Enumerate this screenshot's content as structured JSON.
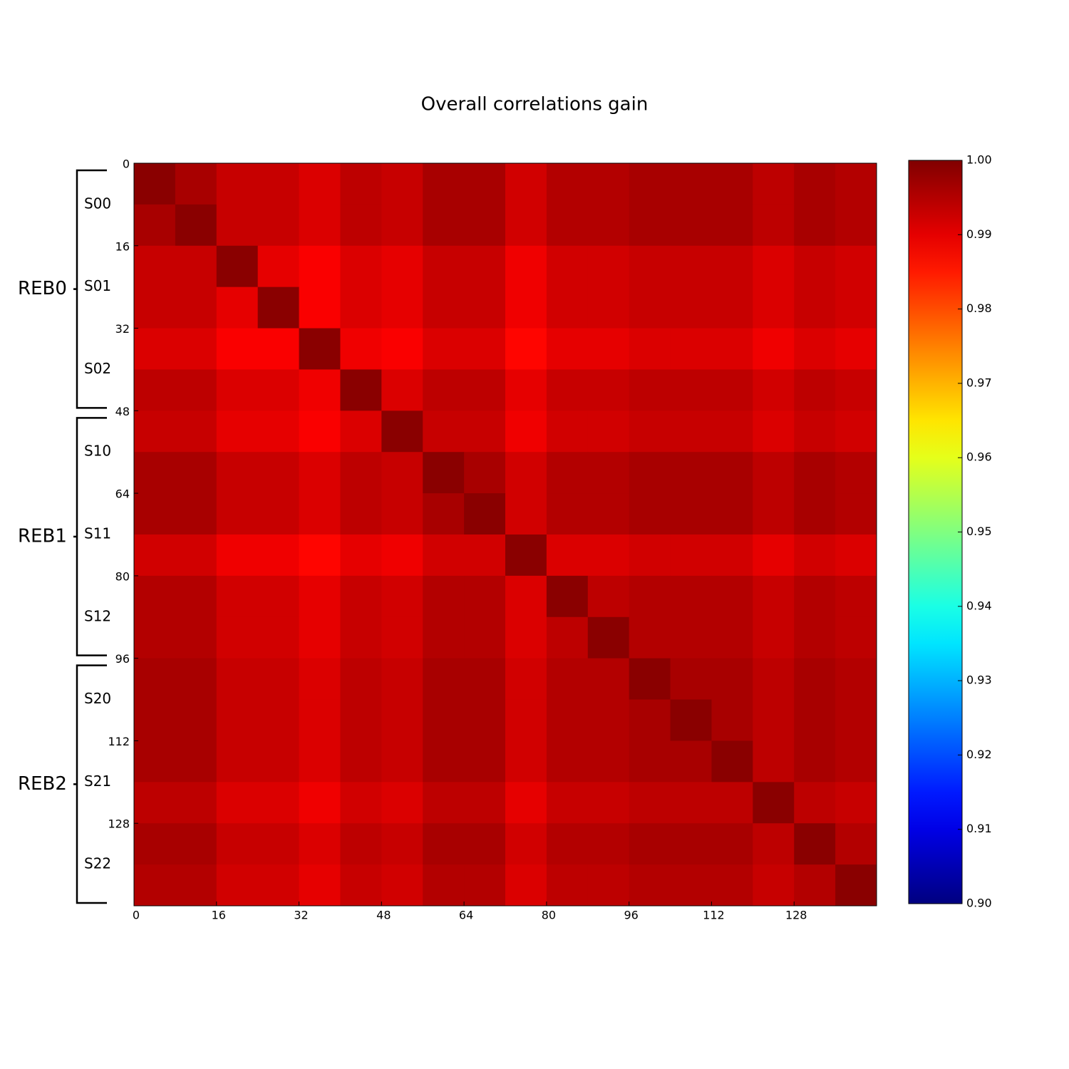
{
  "chart_data": {
    "type": "heatmap",
    "title": "Overall correlations gain",
    "colormap": "jet",
    "xlim": [
      0,
      144
    ],
    "ylim": [
      144,
      0
    ],
    "xticks": [
      0,
      16,
      32,
      48,
      64,
      80,
      96,
      112,
      128
    ],
    "yticks": [
      0,
      16,
      32,
      48,
      64,
      80,
      96,
      112,
      128
    ],
    "clim": [
      0.9,
      1.0
    ],
    "cticks": [
      {
        "value": 0.9,
        "label": "0.90"
      },
      {
        "value": 0.91,
        "label": "0.91"
      },
      {
        "value": 0.92,
        "label": "0.92"
      },
      {
        "value": 0.93,
        "label": "0.93"
      },
      {
        "value": 0.94,
        "label": "0.94"
      },
      {
        "value": 0.95,
        "label": "0.95"
      },
      {
        "value": 0.96,
        "label": "0.96"
      },
      {
        "value": 0.97,
        "label": "0.97"
      },
      {
        "value": 0.98,
        "label": "0.98"
      },
      {
        "value": 0.99,
        "label": "0.99"
      },
      {
        "value": 1.0,
        "label": "1.00"
      }
    ],
    "groups": [
      {
        "label": "REB0",
        "subgroups": [
          "S00",
          "S01",
          "S02"
        ]
      },
      {
        "label": "REB1",
        "subgroups": [
          "S10",
          "S11",
          "S12"
        ]
      },
      {
        "label": "REB2",
        "subgroups": [
          "S20",
          "S21",
          "S22"
        ]
      }
    ],
    "values": [
      [
        0.999,
        0.996,
        0.993,
        0.993,
        0.991,
        0.994,
        0.993,
        0.996,
        0.996,
        0.992,
        0.995,
        0.995,
        0.996,
        0.996,
        0.996,
        0.994,
        0.996,
        0.995
      ],
      [
        0.996,
        0.999,
        0.993,
        0.993,
        0.991,
        0.994,
        0.993,
        0.996,
        0.996,
        0.992,
        0.995,
        0.995,
        0.996,
        0.996,
        0.996,
        0.994,
        0.996,
        0.995
      ],
      [
        0.993,
        0.993,
        0.999,
        0.99,
        0.988,
        0.991,
        0.99,
        0.993,
        0.993,
        0.989,
        0.992,
        0.992,
        0.993,
        0.993,
        0.993,
        0.991,
        0.993,
        0.992
      ],
      [
        0.993,
        0.993,
        0.99,
        0.999,
        0.988,
        0.991,
        0.99,
        0.993,
        0.993,
        0.989,
        0.992,
        0.992,
        0.993,
        0.993,
        0.993,
        0.991,
        0.993,
        0.992
      ],
      [
        0.991,
        0.991,
        0.988,
        0.988,
        0.999,
        0.989,
        0.988,
        0.991,
        0.991,
        0.987,
        0.99,
        0.99,
        0.991,
        0.991,
        0.991,
        0.989,
        0.991,
        0.99
      ],
      [
        0.994,
        0.994,
        0.991,
        0.991,
        0.989,
        0.999,
        0.991,
        0.994,
        0.994,
        0.99,
        0.993,
        0.993,
        0.994,
        0.994,
        0.994,
        0.992,
        0.994,
        0.993
      ],
      [
        0.993,
        0.993,
        0.99,
        0.99,
        0.988,
        0.991,
        0.999,
        0.993,
        0.993,
        0.989,
        0.992,
        0.992,
        0.993,
        0.993,
        0.993,
        0.991,
        0.993,
        0.992
      ],
      [
        0.996,
        0.996,
        0.993,
        0.993,
        0.991,
        0.994,
        0.993,
        0.999,
        0.996,
        0.992,
        0.995,
        0.995,
        0.996,
        0.996,
        0.996,
        0.994,
        0.996,
        0.995
      ],
      [
        0.996,
        0.996,
        0.993,
        0.993,
        0.991,
        0.994,
        0.993,
        0.996,
        0.999,
        0.992,
        0.995,
        0.995,
        0.996,
        0.996,
        0.996,
        0.994,
        0.996,
        0.995
      ],
      [
        0.992,
        0.992,
        0.989,
        0.989,
        0.987,
        0.99,
        0.989,
        0.992,
        0.992,
        0.999,
        0.991,
        0.991,
        0.992,
        0.992,
        0.992,
        0.99,
        0.992,
        0.991
      ],
      [
        0.995,
        0.995,
        0.992,
        0.992,
        0.99,
        0.993,
        0.992,
        0.995,
        0.995,
        0.991,
        0.999,
        0.994,
        0.995,
        0.995,
        0.995,
        0.993,
        0.995,
        0.994
      ],
      [
        0.995,
        0.995,
        0.992,
        0.992,
        0.99,
        0.993,
        0.992,
        0.995,
        0.995,
        0.991,
        0.994,
        0.999,
        0.995,
        0.995,
        0.995,
        0.993,
        0.995,
        0.994
      ],
      [
        0.996,
        0.996,
        0.993,
        0.993,
        0.991,
        0.994,
        0.993,
        0.996,
        0.996,
        0.992,
        0.995,
        0.995,
        0.999,
        0.996,
        0.996,
        0.994,
        0.996,
        0.995
      ],
      [
        0.996,
        0.996,
        0.993,
        0.993,
        0.991,
        0.994,
        0.993,
        0.996,
        0.996,
        0.992,
        0.995,
        0.995,
        0.996,
        0.999,
        0.996,
        0.994,
        0.996,
        0.995
      ],
      [
        0.996,
        0.996,
        0.993,
        0.993,
        0.991,
        0.994,
        0.993,
        0.996,
        0.996,
        0.992,
        0.995,
        0.995,
        0.996,
        0.996,
        0.999,
        0.994,
        0.996,
        0.995
      ],
      [
        0.994,
        0.994,
        0.991,
        0.991,
        0.989,
        0.992,
        0.991,
        0.994,
        0.994,
        0.99,
        0.993,
        0.993,
        0.994,
        0.994,
        0.994,
        0.999,
        0.994,
        0.993
      ],
      [
        0.996,
        0.996,
        0.993,
        0.993,
        0.991,
        0.994,
        0.993,
        0.996,
        0.996,
        0.992,
        0.995,
        0.995,
        0.996,
        0.996,
        0.996,
        0.994,
        0.999,
        0.995
      ],
      [
        0.995,
        0.995,
        0.992,
        0.992,
        0.99,
        0.993,
        0.992,
        0.995,
        0.995,
        0.991,
        0.994,
        0.994,
        0.995,
        0.995,
        0.995,
        0.993,
        0.995,
        0.999
      ]
    ]
  }
}
